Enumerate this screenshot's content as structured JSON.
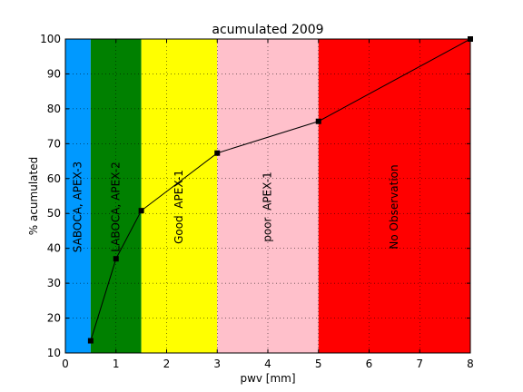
{
  "chart_data": {
    "type": "line",
    "title": "acumulated 2009",
    "xlabel": "pwv [mm]",
    "ylabel": "% acumulated",
    "xlim": [
      0,
      8
    ],
    "ylim": [
      10,
      100
    ],
    "x_ticks": [
      "0",
      "1",
      "2",
      "3",
      "4",
      "5",
      "6",
      "7",
      "8"
    ],
    "y_ticks": [
      "10",
      "20",
      "30",
      "40",
      "50",
      "60",
      "70",
      "80",
      "90",
      "100"
    ],
    "grid": true,
    "bands": [
      {
        "from": 0.0,
        "to": 0.5,
        "color": "#0099ff",
        "label": "SABOCA, APEX-3"
      },
      {
        "from": 0.5,
        "to": 1.5,
        "color": "#008000",
        "label": "LABOCA, APEX-2"
      },
      {
        "from": 1.5,
        "to": 3.0,
        "color": "#ffff00",
        "label": "Good  APEX-1"
      },
      {
        "from": 3.0,
        "to": 5.0,
        "color": "#ffc0cb",
        "label": "poor  APEX-1"
      },
      {
        "from": 5.0,
        "to": 8.0,
        "color": "#ff0000",
        "label": "No Observation"
      }
    ],
    "series": [
      {
        "x": [
          0.5,
          1.0,
          1.5,
          3.0,
          5.0,
          8.0
        ],
        "y": [
          13.5,
          37,
          50.8,
          67.3,
          76.4,
          100
        ],
        "color": "#000000"
      }
    ]
  }
}
